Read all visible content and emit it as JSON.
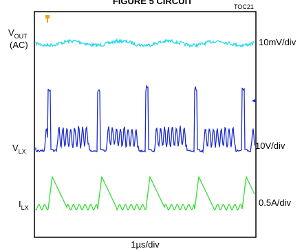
{
  "header": {
    "title": "FIGURE 5 CIRCUIT",
    "code": "TOC21"
  },
  "traces": [
    {
      "label": "V",
      "sub": "OUT",
      "line2": "(AC)",
      "scale": "10mV/div"
    },
    {
      "label": "V",
      "sub": "LX",
      "scale": "10V/div"
    },
    {
      "label": "I",
      "sub": "LX",
      "scale": "0.5A/div"
    }
  ],
  "time_scale": "1µs/div"
}
